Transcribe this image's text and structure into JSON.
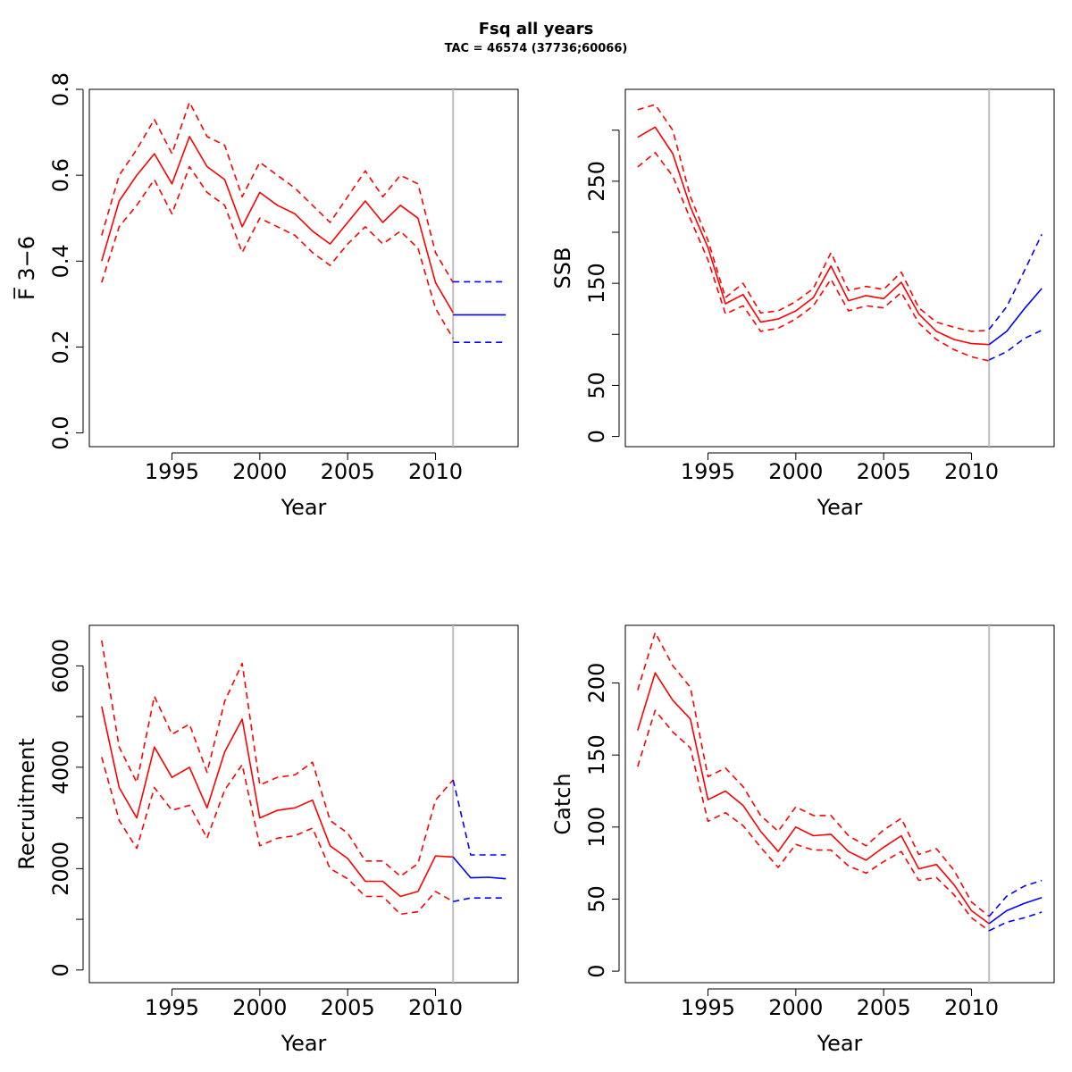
{
  "title": "Fsq all years",
  "subtitle": "TAC = 46574 (37736;60066)",
  "colors": {
    "history": "#ff0000",
    "forecast": "#0000ff",
    "divider": "#bebebe",
    "axis": "#000000"
  },
  "chart_data": [
    {
      "type": "line",
      "xlabel": "Year",
      "ylabel": "F̅ 3−6",
      "xlim": [
        1990.3,
        2014.7
      ],
      "ylim": [
        -0.032,
        0.8
      ],
      "xticks": [
        1995,
        2000,
        2005,
        2010
      ],
      "yticks": [
        0.0,
        0.2,
        0.4,
        0.6,
        0.8
      ],
      "ytick_labels": [
        "0.0",
        "0.2",
        "0.4",
        "0.6",
        "0.8"
      ],
      "divider_year": 2011,
      "history": {
        "x": [
          1991,
          1992,
          1993,
          1994,
          1995,
          1996,
          1997,
          1998,
          1999,
          2000,
          2001,
          2002,
          2003,
          2004,
          2005,
          2006,
          2007,
          2008,
          2009,
          2010,
          2011
        ],
        "est": [
          0.4,
          0.54,
          0.6,
          0.65,
          0.58,
          0.69,
          0.62,
          0.59,
          0.48,
          0.56,
          0.53,
          0.51,
          0.47,
          0.44,
          0.49,
          0.54,
          0.49,
          0.53,
          0.5,
          0.35,
          0.28
        ],
        "upper": [
          0.46,
          0.6,
          0.66,
          0.73,
          0.65,
          0.77,
          0.69,
          0.67,
          0.55,
          0.63,
          0.6,
          0.57,
          0.53,
          0.49,
          0.55,
          0.61,
          0.55,
          0.6,
          0.58,
          0.42,
          0.35
        ],
        "lower": [
          0.35,
          0.48,
          0.53,
          0.59,
          0.51,
          0.62,
          0.56,
          0.53,
          0.42,
          0.5,
          0.48,
          0.46,
          0.42,
          0.39,
          0.44,
          0.48,
          0.44,
          0.47,
          0.43,
          0.29,
          0.22
        ]
      },
      "forecast": {
        "x": [
          2011,
          2012,
          2013,
          2014
        ],
        "est": [
          0.275,
          0.275,
          0.275,
          0.275
        ],
        "upper": [
          0.352,
          0.352,
          0.352,
          0.352
        ],
        "lower": [
          0.211,
          0.211,
          0.211,
          0.211
        ]
      }
    },
    {
      "type": "line",
      "xlabel": "Year",
      "ylabel": "SSB",
      "xlim": [
        1990.3,
        2014.7
      ],
      "ylim": [
        -10,
        340
      ],
      "xticks": [
        1995,
        2000,
        2005,
        2010
      ],
      "yticks": [
        0,
        50,
        150,
        250
      ],
      "ytick_labels": [
        "0",
        "50",
        "150",
        "250"
      ],
      "minor_yticks": [
        100,
        200,
        300
      ],
      "divider_year": 2011,
      "history": {
        "x": [
          1991,
          1992,
          1993,
          1994,
          1995,
          1996,
          1997,
          1998,
          1999,
          2000,
          2001,
          2002,
          2003,
          2004,
          2005,
          2006,
          2007,
          2008,
          2009,
          2010,
          2011
        ],
        "est": [
          293,
          303,
          277,
          225,
          185,
          130,
          139,
          112,
          115,
          123,
          136,
          167,
          133,
          138,
          135,
          151,
          120,
          103,
          95,
          91,
          90
        ],
        "upper": [
          320,
          325,
          300,
          235,
          192,
          136,
          150,
          121,
          123,
          132,
          145,
          180,
          143,
          147,
          144,
          161,
          126,
          112,
          107,
          103,
          104
        ],
        "lower": [
          264,
          278,
          255,
          213,
          173,
          120,
          128,
          103,
          106,
          115,
          128,
          154,
          123,
          128,
          126,
          141,
          111,
          95,
          85,
          78,
          74
        ]
      },
      "forecast": {
        "x": [
          2011,
          2012,
          2013,
          2014
        ],
        "est": [
          90,
          103,
          125,
          145
        ],
        "upper": [
          105,
          127,
          162,
          198
        ],
        "lower": [
          75,
          83,
          96,
          104
        ]
      }
    },
    {
      "type": "line",
      "xlabel": "Year",
      "ylabel": "Recruitment",
      "xlim": [
        1990.3,
        2014.7
      ],
      "ylim": [
        -250,
        6800
      ],
      "xticks": [
        1995,
        2000,
        2005,
        2010
      ],
      "yticks": [
        0,
        2000,
        4000,
        6000
      ],
      "ytick_labels": [
        "0",
        "2000",
        "4000",
        "6000"
      ],
      "minor_yticks": [
        1000,
        3000,
        5000
      ],
      "divider_year": 2011,
      "history": {
        "x": [
          1991,
          1992,
          1993,
          1994,
          1995,
          1996,
          1997,
          1998,
          1999,
          2000,
          2001,
          2002,
          2003,
          2004,
          2005,
          2006,
          2007,
          2008,
          2009,
          2010,
          2011
        ],
        "est": [
          5200,
          3600,
          3000,
          4400,
          3800,
          4000,
          3200,
          4300,
          4950,
          3000,
          3150,
          3200,
          3350,
          2450,
          2200,
          1750,
          1750,
          1450,
          1550,
          2250,
          2230
        ],
        "upper": [
          6500,
          4400,
          3700,
          5400,
          4650,
          4850,
          3900,
          5300,
          6050,
          3650,
          3800,
          3850,
          4100,
          2950,
          2700,
          2150,
          2150,
          1850,
          2100,
          3350,
          3750
        ],
        "lower": [
          4200,
          2950,
          2400,
          3600,
          3150,
          3250,
          2600,
          3550,
          4050,
          2450,
          2600,
          2650,
          2800,
          2000,
          1800,
          1450,
          1450,
          1100,
          1150,
          1550,
          1350
        ]
      },
      "forecast": {
        "x": [
          2011,
          2012,
          2013,
          2014
        ],
        "est": [
          2230,
          1820,
          1830,
          1800
        ],
        "upper": [
          3750,
          2270,
          2270,
          2270
        ],
        "lower": [
          1350,
          1420,
          1420,
          1420
        ]
      }
    },
    {
      "type": "line",
      "xlabel": "Year",
      "ylabel": "Catch",
      "xlim": [
        1990.3,
        2014.7
      ],
      "ylim": [
        -8,
        240
      ],
      "xticks": [
        1995,
        2000,
        2005,
        2010
      ],
      "yticks": [
        0,
        50,
        100,
        150,
        200
      ],
      "ytick_labels": [
        "0",
        "50",
        "100",
        "150",
        "200"
      ],
      "divider_year": 2011,
      "history": {
        "x": [
          1991,
          1992,
          1993,
          1994,
          1995,
          1996,
          1997,
          1998,
          1999,
          2000,
          2001,
          2002,
          2003,
          2004,
          2005,
          2006,
          2007,
          2008,
          2009,
          2010,
          2011
        ],
        "est": [
          167,
          207,
          188,
          175,
          119,
          125,
          115,
          97,
          83,
          100,
          94,
          95,
          83,
          77,
          86,
          94,
          71,
          74,
          60,
          42,
          33
        ],
        "upper": [
          195,
          235,
          212,
          197,
          135,
          141,
          128,
          108,
          97,
          114,
          108,
          108,
          94,
          87,
          98,
          106,
          81,
          85,
          70,
          48,
          38
        ],
        "lower": [
          142,
          181,
          166,
          155,
          104,
          110,
          101,
          86,
          72,
          88,
          84,
          84,
          73,
          68,
          76,
          83,
          63,
          65,
          53,
          37,
          28
        ]
      },
      "forecast": {
        "x": [
          2011,
          2012,
          2013,
          2014
        ],
        "est": [
          33,
          42,
          47,
          51
        ],
        "upper": [
          38,
          52,
          59,
          63
        ],
        "lower": [
          28,
          34,
          37,
          41
        ]
      }
    }
  ]
}
